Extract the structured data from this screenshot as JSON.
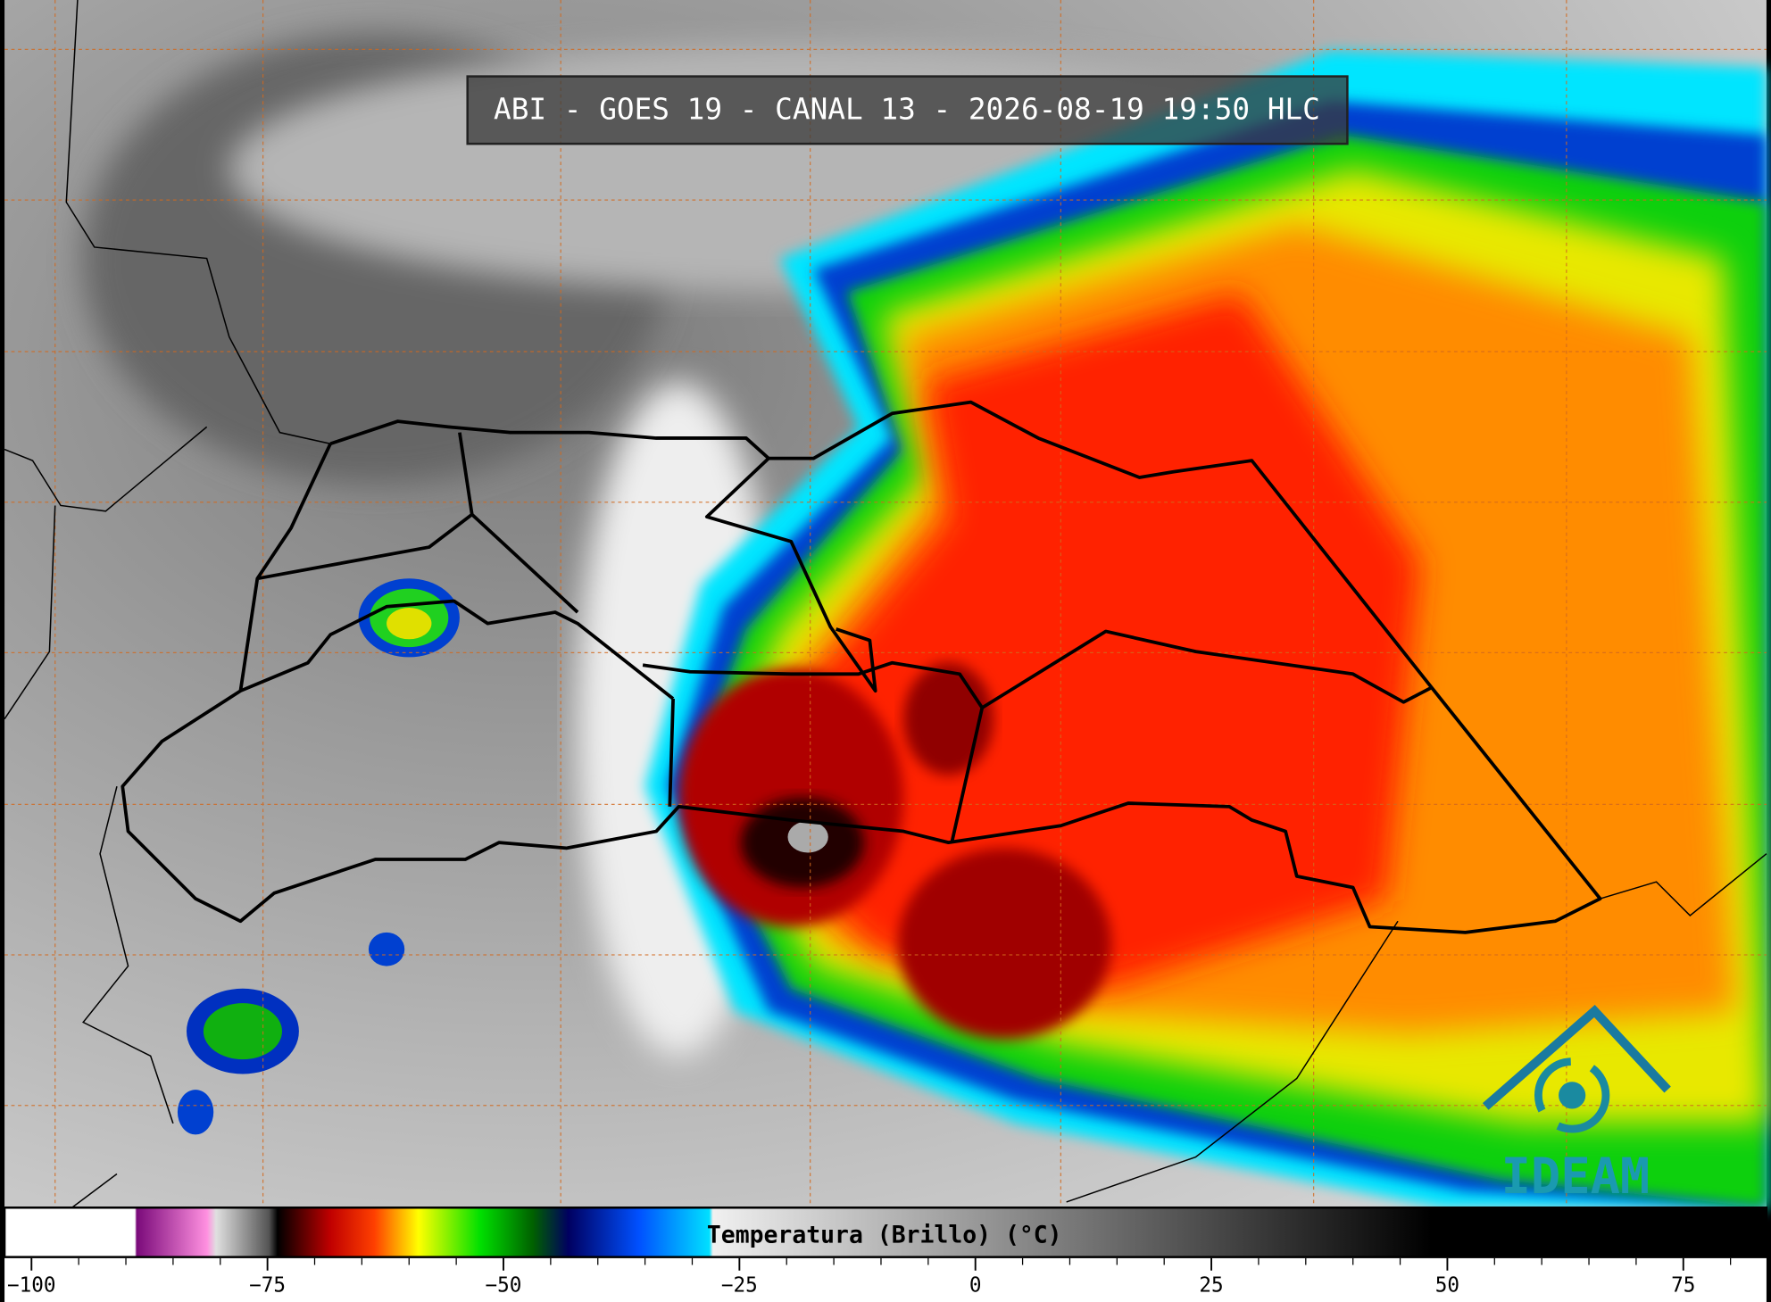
{
  "header": {
    "title": "ABI - GOES 19 - CANAL 13 - 2026-08-19 19:50 HLC"
  },
  "colorbar": {
    "label": "Temperatura (Brillo) (°C)",
    "ticks": [
      {
        "value": -100,
        "label": "−100"
      },
      {
        "value": -75,
        "label": "−75"
      },
      {
        "value": -50,
        "label": "−50"
      },
      {
        "value": -25,
        "label": "−25"
      },
      0,
      25,
      50,
      75
    ]
  },
  "logo": {
    "text": "IDEAM"
  }
}
